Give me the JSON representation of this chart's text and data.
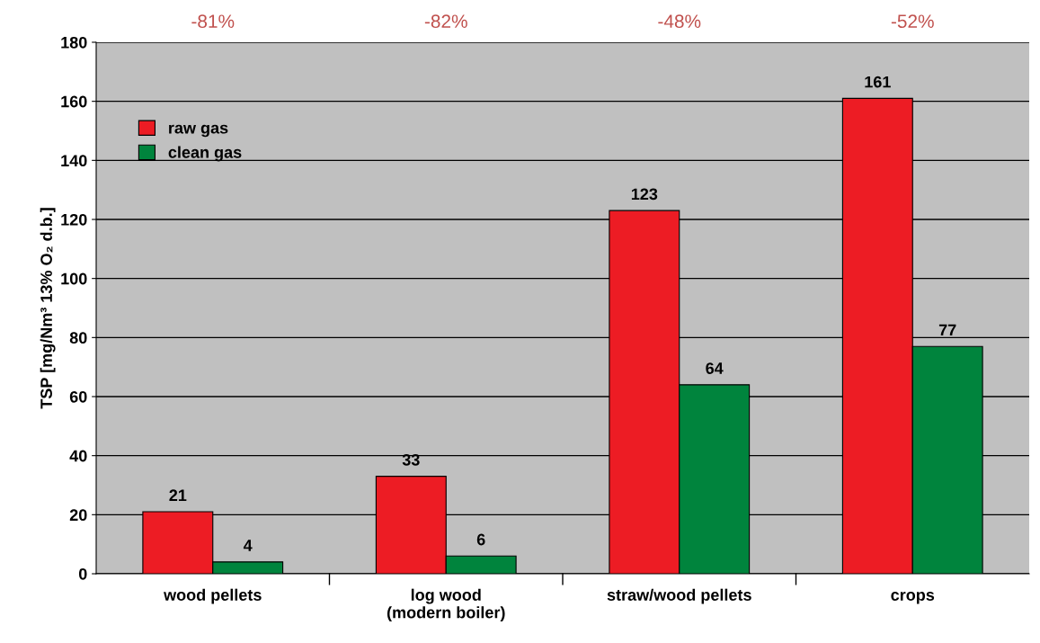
{
  "chart_data": {
    "type": "bar",
    "ylabel": "TSP [mg/Nm³ 13% O₂ d.b.]",
    "categories": [
      "wood pellets",
      "log wood\n(modern boiler)",
      "straw/wood pellets",
      "crops"
    ],
    "series": [
      {
        "name": "raw gas",
        "color": "#ed1c24",
        "values": [
          21,
          33,
          123,
          161
        ]
      },
      {
        "name": "clean gas",
        "color": "#00843d",
        "values": [
          4,
          6,
          64,
          77
        ]
      }
    ],
    "ylim": [
      0,
      180
    ],
    "yticks": [
      0,
      20,
      40,
      60,
      80,
      100,
      120,
      140,
      160,
      180
    ],
    "grid": "y",
    "legend": "top left",
    "data_labels": true,
    "annotations": [
      "-81%",
      "-82%",
      "-48%",
      "-52%"
    ]
  }
}
